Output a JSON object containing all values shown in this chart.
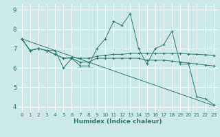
{
  "title": "",
  "xlabel": "Humidex (Indice chaleur)",
  "ylabel": "",
  "background_color": "#cce8e8",
  "grid_color": "#ffffff",
  "line_color": "#2d7a6a",
  "xlim": [
    -0.5,
    23.5
  ],
  "ylim": [
    3.7,
    9.3
  ],
  "yticks": [
    4,
    5,
    6,
    7,
    8,
    9
  ],
  "xticks": [
    0,
    1,
    2,
    3,
    4,
    5,
    6,
    7,
    8,
    9,
    10,
    11,
    12,
    13,
    14,
    15,
    16,
    17,
    18,
    19,
    20,
    21,
    22,
    23
  ],
  "series": [
    {
      "x": [
        0,
        1,
        2,
        3,
        4,
        5,
        6,
        7,
        8,
        9,
        10,
        11,
        12,
        13,
        14,
        15,
        16,
        17,
        18,
        19,
        20,
        21,
        22,
        23
      ],
      "y": [
        7.5,
        6.9,
        7.0,
        6.9,
        6.9,
        6.0,
        6.5,
        6.1,
        6.1,
        7.0,
        7.5,
        8.4,
        8.2,
        8.8,
        7.0,
        6.2,
        7.0,
        7.2,
        7.9,
        6.2,
        6.2,
        4.5,
        4.4,
        4.1
      ],
      "has_markers": true
    },
    {
      "x": [
        0,
        1,
        2,
        3,
        4,
        5,
        6,
        7,
        8,
        9,
        10,
        11,
        12,
        13,
        14,
        15,
        16,
        17,
        18,
        19,
        20,
        21,
        22,
        23
      ],
      "y": [
        7.5,
        6.9,
        7.0,
        6.9,
        6.7,
        6.5,
        6.5,
        6.3,
        6.3,
        6.5,
        6.5,
        6.5,
        6.5,
        6.5,
        6.5,
        6.4,
        6.4,
        6.4,
        6.35,
        6.3,
        6.25,
        6.2,
        6.15,
        6.1
      ],
      "has_markers": true
    },
    {
      "x": [
        0,
        1,
        2,
        3,
        4,
        5,
        6,
        7,
        8,
        9,
        10,
        11,
        12,
        13,
        14,
        15,
        16,
        17,
        18,
        19,
        20,
        21,
        22,
        23
      ],
      "y": [
        7.5,
        6.9,
        7.0,
        6.9,
        6.7,
        6.5,
        6.55,
        6.5,
        6.5,
        6.6,
        6.65,
        6.7,
        6.7,
        6.75,
        6.75,
        6.75,
        6.75,
        6.75,
        6.75,
        6.75,
        6.72,
        6.7,
        6.68,
        6.65
      ],
      "has_markers": true
    },
    {
      "x": [
        0,
        23
      ],
      "y": [
        7.5,
        4.05
      ],
      "has_markers": false
    }
  ]
}
